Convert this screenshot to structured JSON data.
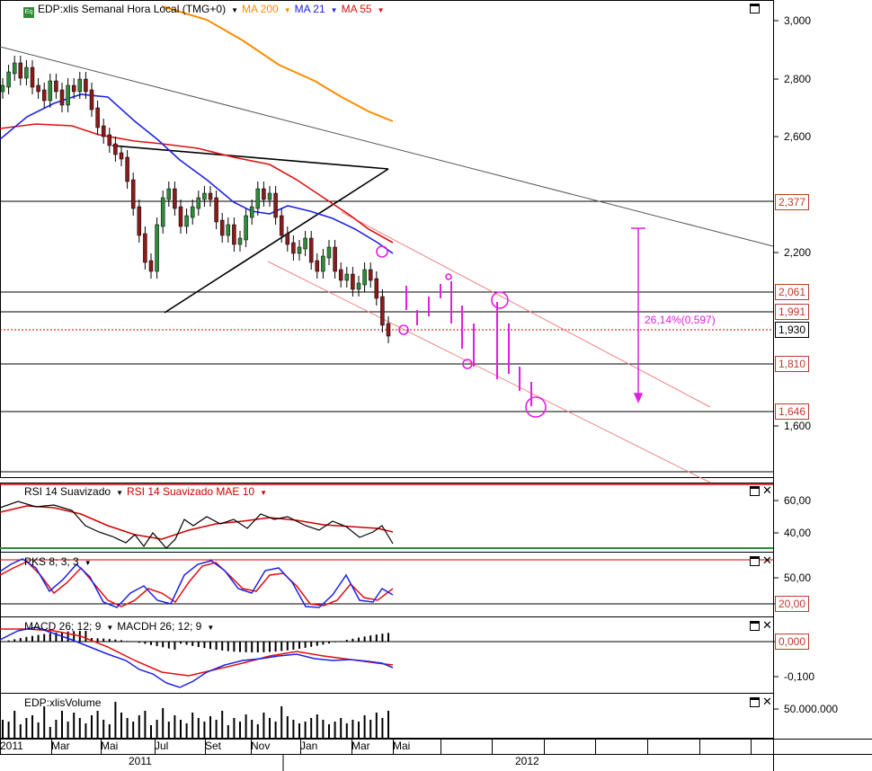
{
  "header": {
    "icon_text": "Eq",
    "title": "EDP:xlis Semanal Hora Local (TMG+0)",
    "ma200": "MA 200",
    "ma21": "MA 21",
    "ma55": "MA 55",
    "colors": {
      "ma200": "#ff8c00",
      "ma21": "#1e22e6",
      "ma55": "#e01010"
    }
  },
  "price_axis": {
    "ticks": [
      "3,000",
      "2,800",
      "2,600",
      "2,200",
      "1,600"
    ],
    "levels": [
      {
        "label": "2,377",
        "value": 2.377,
        "color": "#c0392b"
      },
      {
        "label": "2,061",
        "value": 2.061,
        "color": "#c0392b"
      },
      {
        "label": "1,991",
        "value": 1.991,
        "color": "#c0392b"
      },
      {
        "label": "1,930",
        "value": 1.93,
        "color": "#000000"
      },
      {
        "label": "1,810",
        "value": 1.81,
        "color": "#c0392b"
      },
      {
        "label": "1,646",
        "value": 1.646,
        "color": "#c0392b"
      }
    ]
  },
  "annotation": {
    "text": "26,14%(0,597)",
    "color": "#e020e0"
  },
  "rsi": {
    "label1": "RSI 14 Suavizado",
    "label2": "RSI 14 Suavizado MAE 10",
    "ticks": [
      "60,00",
      "40,00"
    ]
  },
  "pks": {
    "label": "PKS 8; 3; 3",
    "ticks": [
      "50,00",
      "20,00"
    ]
  },
  "macd": {
    "label1": "MACD 26; 12; 9",
    "label2": "MACDH 26; 12; 9",
    "ticks": [
      "0,000",
      "-0,100"
    ]
  },
  "volume": {
    "label": "EDP:xlisVolume",
    "ticks": [
      "50.000.000"
    ]
  },
  "x_axis": {
    "months": [
      "2011",
      "Mar",
      "Mai",
      "Jul",
      "Set",
      "Nov",
      "Jan",
      "Mar",
      "Mai"
    ],
    "years": [
      "2011",
      "2012"
    ]
  }
}
